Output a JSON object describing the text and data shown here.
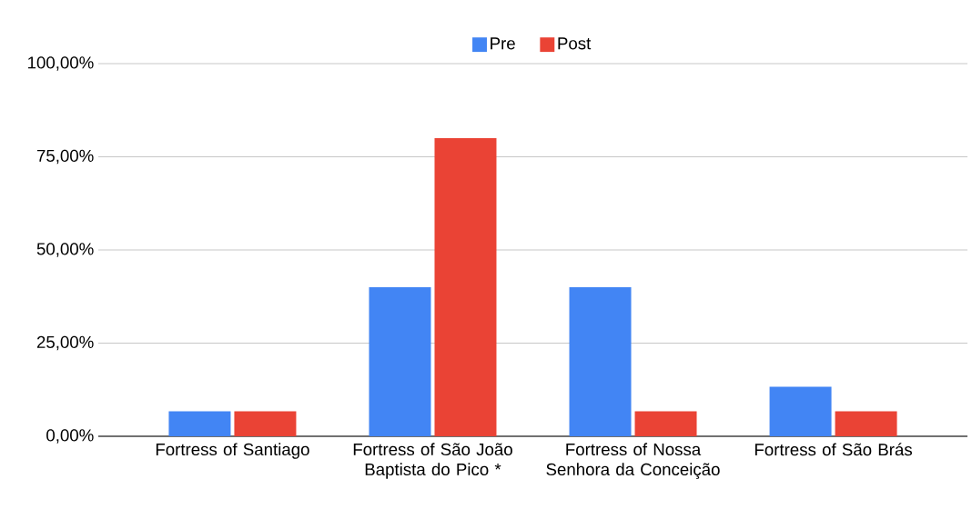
{
  "chart_data": {
    "type": "bar",
    "categories": [
      "Fortress of Santiago",
      "Fortress of São João Baptista do Pico *",
      "Fortress of Nossa Senhora da Conceição",
      "Fortress of São Brás"
    ],
    "series": [
      {
        "name": "Pre",
        "color": "#4285f4",
        "values": [
          6.7,
          40,
          40,
          13.3
        ]
      },
      {
        "name": "Post",
        "color": "#ea4335",
        "values": [
          6.7,
          80,
          6.7,
          6.7
        ]
      }
    ],
    "ylim": [
      0,
      100
    ],
    "yticks": [
      {
        "value": 0,
        "label": "0,00%"
      },
      {
        "value": 25,
        "label": "25,00%"
      },
      {
        "value": 50,
        "label": "50,00%"
      },
      {
        "value": 75,
        "label": "75,00%"
      },
      {
        "value": 100,
        "label": "100,00%"
      }
    ],
    "grid": "y",
    "legend": "top"
  }
}
